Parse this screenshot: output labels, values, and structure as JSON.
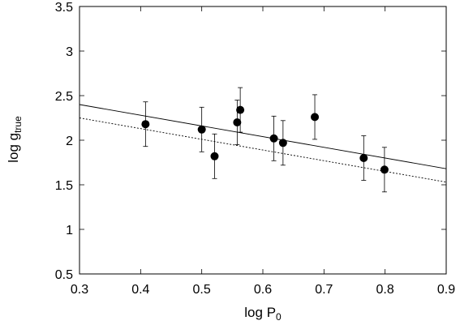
{
  "chart_data": {
    "type": "scatter",
    "xlabel": "log P",
    "xlabel_sub": "0",
    "ylabel": "log g",
    "ylabel_sub": "true",
    "xlim": [
      0.3,
      0.9
    ],
    "ylim": [
      0.5,
      3.5
    ],
    "xticks": [
      0.3,
      0.4,
      0.5,
      0.6,
      0.7,
      0.8,
      0.9
    ],
    "yticks": [
      0.5,
      1,
      1.5,
      2,
      2.5,
      3,
      3.5
    ],
    "xtick_labels": [
      "0.3",
      "0.4",
      "0.5",
      "0.6",
      "0.7",
      "0.8",
      "0.9"
    ],
    "ytick_labels": [
      "0.5",
      "1",
      "1.5",
      "2",
      "2.5",
      "3",
      "3.5"
    ],
    "grid": false,
    "legend": "none",
    "points": [
      {
        "x": 0.408,
        "y": 2.18,
        "err": 0.25
      },
      {
        "x": 0.5,
        "y": 2.12,
        "err": 0.25
      },
      {
        "x": 0.521,
        "y": 1.82,
        "err": 0.25
      },
      {
        "x": 0.558,
        "y": 2.2,
        "err": 0.25
      },
      {
        "x": 0.563,
        "y": 2.34,
        "err": 0.25
      },
      {
        "x": 0.618,
        "y": 2.02,
        "err": 0.25
      },
      {
        "x": 0.633,
        "y": 1.97,
        "err": 0.25
      },
      {
        "x": 0.685,
        "y": 2.26,
        "err": 0.25
      },
      {
        "x": 0.765,
        "y": 1.8,
        "err": 0.25
      },
      {
        "x": 0.799,
        "y": 1.67,
        "err": 0.25
      }
    ],
    "lines": [
      {
        "style": "solid",
        "x": [
          0.3,
          0.9
        ],
        "y": [
          2.4,
          1.68
        ]
      },
      {
        "style": "dotted",
        "x": [
          0.3,
          0.9
        ],
        "y": [
          2.25,
          1.53
        ]
      }
    ],
    "colors": {
      "points": "#000000",
      "lines": "#000000",
      "axes": "#000000"
    }
  }
}
